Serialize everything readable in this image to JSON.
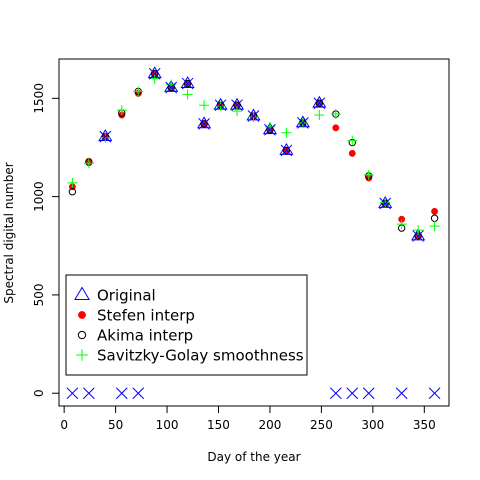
{
  "chart_data": {
    "type": "scatter",
    "xlabel": "Day of the year",
    "ylabel": "Spectral digital number",
    "xlim": [
      -5,
      374
    ],
    "ylim": [
      -65,
      1700
    ],
    "x_ticks": [
      0,
      50,
      100,
      150,
      200,
      250,
      300,
      350
    ],
    "y_ticks": [
      0,
      500,
      1000,
      1500
    ],
    "legend_position": "bottom-left",
    "x": [
      8,
      24,
      40,
      56,
      72,
      88,
      104,
      120,
      136,
      152,
      168,
      184,
      200,
      216,
      232,
      248,
      264,
      280,
      296,
      312,
      328,
      344,
      360
    ],
    "series": [
      {
        "name": "Original",
        "marker": "triangle",
        "color": "#0000ff",
        "values": [
          0,
          0,
          1305,
          0,
          0,
          1625,
          1555,
          1575,
          1370,
          1465,
          1465,
          1410,
          1340,
          1235,
          1375,
          1475,
          0,
          0,
          0,
          965,
          0,
          800,
          0
        ]
      },
      {
        "name": "Stefen interp",
        "marker": "filled-circle",
        "color": "#ff0000",
        "values": [
          1050,
          1180,
          1305,
          1415,
          1525,
          1625,
          1555,
          1575,
          1370,
          1465,
          1465,
          1410,
          1340,
          1235,
          1375,
          1475,
          1350,
          1220,
          1095,
          965,
          885,
          800,
          925
        ]
      },
      {
        "name": "Akima interp",
        "marker": "open-circle",
        "color": "#000000",
        "values": [
          1025,
          1175,
          1305,
          1425,
          1535,
          1625,
          1555,
          1575,
          1370,
          1465,
          1465,
          1410,
          1340,
          1235,
          1375,
          1475,
          1420,
          1275,
          1105,
          965,
          840,
          800,
          890
        ]
      },
      {
        "name": "Savitzky-Golay smoothness",
        "marker": "plus",
        "color": "#00ff00",
        "values": [
          1070,
          1170,
          1300,
          1440,
          1535,
          1600,
          1570,
          1520,
          1465,
          1460,
          1435,
          1405,
          1355,
          1325,
          1375,
          1415,
          1420,
          1285,
          1110,
          970,
          860,
          830,
          850
        ]
      }
    ],
    "x_markers": {
      "name": "x-markers",
      "color": "#0000ff",
      "x": [
        8,
        24,
        56,
        72,
        264,
        280,
        296,
        328,
        360
      ],
      "y": 0
    }
  }
}
